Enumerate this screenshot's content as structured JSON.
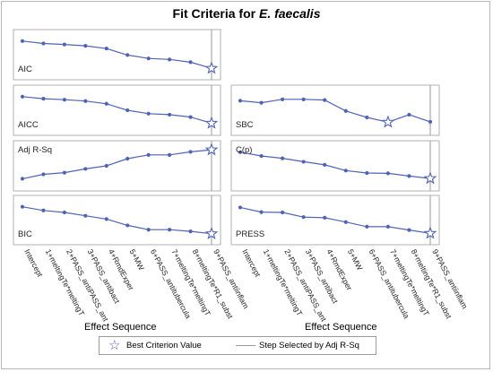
{
  "figure": {
    "title_prefix": "Fit Criteria for ",
    "title_species": "E. faecalis"
  },
  "xlabels": {
    "left": "Effect Sequence",
    "right": "Effect Sequence"
  },
  "legend": {
    "best_label": "Best Criterion Value",
    "step_label": "Step Selected by Adj R-Sq"
  },
  "colors": {
    "series": "#4f63b4",
    "panel_border": "#b0b0b0",
    "step_line": "#9a9a9a"
  },
  "chart_data": {
    "type": "line",
    "x": [
      "Intercept",
      "1+meltingTe*meltingT",
      "2+PASS_antiPASS_ant",
      "3+PASS_antibact",
      "4+RmdExper",
      "5+MW",
      "6+PASS_antitubercula",
      "7+meltingTe*meltingT",
      "8+meltingTe*R1_subst",
      "9+PASS_antiinflam"
    ],
    "selected_step_index": 9,
    "panels": [
      {
        "name": "AIC",
        "column": "left",
        "row": 0,
        "values": [
          0.9,
          0.83,
          0.8,
          0.76,
          0.68,
          0.49,
          0.39,
          0.36,
          0.28,
          0.1
        ],
        "best_index": 9
      },
      {
        "name": "AICC",
        "column": "left",
        "row": 1,
        "values": [
          0.9,
          0.84,
          0.81,
          0.77,
          0.69,
          0.5,
          0.4,
          0.37,
          0.3,
          0.12
        ],
        "best_index": 9
      },
      {
        "name": "SBC",
        "column": "right",
        "row": 1,
        "values": [
          0.78,
          0.72,
          0.82,
          0.82,
          0.8,
          0.48,
          0.29,
          0.15,
          0.37,
          0.16
        ],
        "best_index": 7
      },
      {
        "name": "Adj R-Sq",
        "column": "left",
        "row": 2,
        "values": [
          0.12,
          0.25,
          0.3,
          0.41,
          0.5,
          0.71,
          0.82,
          0.82,
          0.91,
          0.97
        ],
        "best_index": 9
      },
      {
        "name": "C(p)",
        "column": "right",
        "row": 2,
        "values": [
          0.9,
          0.79,
          0.72,
          0.62,
          0.53,
          0.36,
          0.29,
          0.28,
          0.2,
          0.13
        ],
        "best_index": 9
      },
      {
        "name": "BIC",
        "column": "left",
        "row": 3,
        "values": [
          0.9,
          0.79,
          0.73,
          0.63,
          0.53,
          0.34,
          0.21,
          0.21,
          0.16,
          0.09
        ],
        "best_index": 9
      },
      {
        "name": "PRESS",
        "column": "right",
        "row": 3,
        "values": [
          0.88,
          0.74,
          0.73,
          0.59,
          0.57,
          0.44,
          0.3,
          0.3,
          0.2,
          0.1
        ],
        "best_index": 9
      }
    ]
  }
}
